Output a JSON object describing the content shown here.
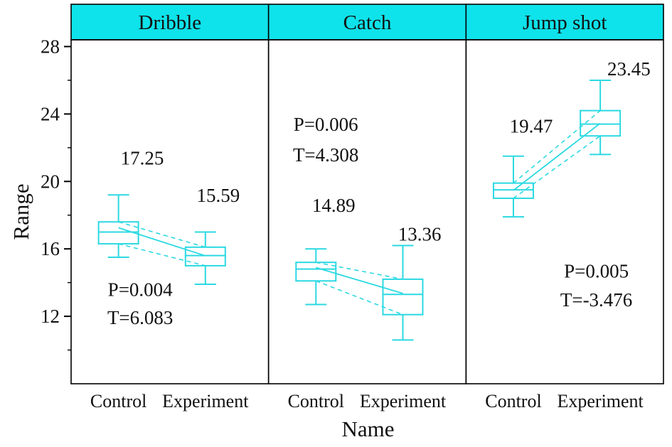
{
  "chart_data": {
    "type": "boxplot",
    "title": "",
    "xlabel": "Name",
    "ylabel": "Range",
    "ylim": [
      8,
      28.4
    ],
    "yticks": [
      12,
      16,
      20,
      24,
      28
    ],
    "y_minor_ticks": [
      10,
      14,
      18,
      22,
      26
    ],
    "legend_position": "none",
    "grid": false,
    "colors": {
      "accent": "#2bd9e2",
      "header_bg": "#0ee2ea",
      "frame": "#000000",
      "text": "#111111"
    },
    "panels": [
      {
        "title": "Dribble",
        "groups": [
          {
            "name": "Control",
            "x": 0.24,
            "low": 15.5,
            "q1": 16.3,
            "median": 17.0,
            "q3": 17.6,
            "high": 19.2,
            "mean": 17.25
          },
          {
            "name": "Experiment",
            "x": 0.68,
            "low": 13.9,
            "q1": 15.0,
            "median": 15.6,
            "q3": 16.1,
            "high": 17.0,
            "mean": 15.59
          }
        ],
        "annotations": [
          {
            "text": "17.25",
            "x": 0.36,
            "y": 21.0
          },
          {
            "text": "15.59",
            "x": 0.745,
            "y": 18.8
          },
          {
            "text": "P=0.004",
            "x": 0.35,
            "y": 13.2
          },
          {
            "text": "T=6.083",
            "x": 0.35,
            "y": 11.55
          }
        ]
      },
      {
        "title": "Catch",
        "groups": [
          {
            "name": "Control",
            "x": 0.24,
            "low": 12.7,
            "q1": 14.1,
            "median": 14.8,
            "q3": 15.2,
            "high": 16.0,
            "mean": 14.89
          },
          {
            "name": "Experiment",
            "x": 0.68,
            "low": 10.6,
            "q1": 12.1,
            "median": 13.3,
            "q3": 14.2,
            "high": 16.2,
            "mean": 13.36
          }
        ],
        "annotations": [
          {
            "text": "P=0.006",
            "x": 0.29,
            "y": 23.0
          },
          {
            "text": "T=4.308",
            "x": 0.29,
            "y": 21.2
          },
          {
            "text": "14.89",
            "x": 0.33,
            "y": 18.2
          },
          {
            "text": "13.36",
            "x": 0.765,
            "y": 16.5
          }
        ]
      },
      {
        "title": "Jump shot",
        "groups": [
          {
            "name": "Control",
            "x": 0.24,
            "low": 17.9,
            "q1": 19.0,
            "median": 19.5,
            "q3": 19.9,
            "high": 21.5,
            "mean": 19.47
          },
          {
            "name": "Experiment",
            "x": 0.68,
            "low": 21.6,
            "q1": 22.7,
            "median": 23.4,
            "q3": 24.2,
            "high": 26.0,
            "mean": 23.45
          }
        ],
        "annotations": [
          {
            "text": "19.47",
            "x": 0.33,
            "y": 22.9
          },
          {
            "text": "23.45",
            "x": 0.825,
            "y": 26.3
          },
          {
            "text": "P=0.005",
            "x": 0.66,
            "y": 14.3
          },
          {
            "text": "T=-3.476",
            "x": 0.66,
            "y": 12.6
          }
        ]
      }
    ]
  }
}
